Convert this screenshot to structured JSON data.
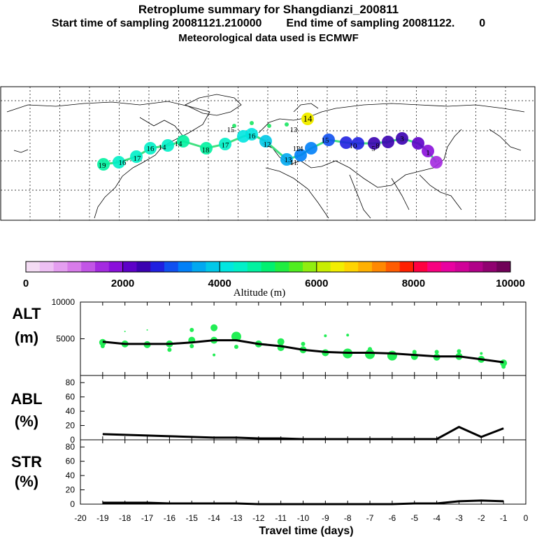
{
  "header": {
    "title": "Retroplume summary for Shangdianzi_200811",
    "start_label": "Start time of sampling 20081121.210000",
    "end_label": "End time of sampling 20081122.",
    "end_suffix": "0",
    "met_label": "Meteorological data used is ECMWF"
  },
  "colors": {
    "line": "#000000",
    "points": "#22ee55",
    "grid": "#000000"
  },
  "chart_data": [
    {
      "name": "colorbar",
      "type": "colorbar",
      "title": "Altitude (m)",
      "range": [
        0,
        10000
      ],
      "tick_labels": [
        "0",
        "2000",
        "4000",
        "6000",
        "8000",
        "10000"
      ],
      "colors": [
        "#f4dcf4",
        "#eec0f4",
        "#e49ef0",
        "#d87cea",
        "#c255e6",
        "#a42ae0",
        "#8a10da",
        "#5d00c8",
        "#3a00b0",
        "#2020e0",
        "#1050f0",
        "#0080f8",
        "#00a8f0",
        "#00c8e8",
        "#00e6e0",
        "#00f0c8",
        "#00f2a0",
        "#00f070",
        "#20ee40",
        "#50ee20",
        "#90ee10",
        "#c8ee00",
        "#f2ee00",
        "#ffd400",
        "#ffb000",
        "#ff8800",
        "#ff5c00",
        "#ff2000",
        "#ff0040",
        "#f80080",
        "#e800a0",
        "#d00098",
        "#b00088",
        "#900070",
        "#700058"
      ]
    },
    {
      "name": "ALT",
      "type": "line+scatter",
      "ylabel_line1": "ALT",
      "ylabel_line2": "(m)",
      "xlabel": "Travel time (days)",
      "ylim": [
        0,
        10000
      ],
      "ytick_labels": [
        "5000",
        "10000"
      ],
      "x": [
        -19,
        -18,
        -17,
        -16,
        -15,
        -14,
        -13,
        -12,
        -11,
        -10,
        -9,
        -8,
        -7,
        -6,
        -5,
        -4,
        -3,
        -2,
        -1
      ],
      "values": [
        4600,
        4300,
        4300,
        4300,
        4500,
        4800,
        4800,
        4300,
        4000,
        3500,
        3200,
        3100,
        3100,
        3000,
        2800,
        2600,
        2600,
        2200,
        1800
      ],
      "scatter": [
        {
          "x": -19,
          "y": 4500,
          "r": 5
        },
        {
          "x": -19,
          "y": 4000,
          "r": 3
        },
        {
          "x": -18,
          "y": 4300,
          "r": 5
        },
        {
          "x": -18,
          "y": 6000,
          "r": 1
        },
        {
          "x": -17,
          "y": 4200,
          "r": 5
        },
        {
          "x": -17,
          "y": 6200,
          "r": 1
        },
        {
          "x": -16,
          "y": 4300,
          "r": 5
        },
        {
          "x": -16,
          "y": 3500,
          "r": 3
        },
        {
          "x": -15,
          "y": 4800,
          "r": 5
        },
        {
          "x": -15,
          "y": 6200,
          "r": 3
        },
        {
          "x": -15,
          "y": 4000,
          "r": 3
        },
        {
          "x": -14,
          "y": 6500,
          "r": 5
        },
        {
          "x": -14,
          "y": 4800,
          "r": 5
        },
        {
          "x": -14,
          "y": 2800,
          "r": 2
        },
        {
          "x": -13,
          "y": 5300,
          "r": 7
        },
        {
          "x": -13,
          "y": 3900,
          "r": 3
        },
        {
          "x": -12,
          "y": 4300,
          "r": 5
        },
        {
          "x": -11,
          "y": 4600,
          "r": 5
        },
        {
          "x": -11,
          "y": 3800,
          "r": 5
        },
        {
          "x": -10,
          "y": 3500,
          "r": 5
        },
        {
          "x": -10,
          "y": 4300,
          "r": 3
        },
        {
          "x": -9,
          "y": 3100,
          "r": 5
        },
        {
          "x": -9,
          "y": 5400,
          "r": 2
        },
        {
          "x": -8,
          "y": 3000,
          "r": 7
        },
        {
          "x": -8,
          "y": 5500,
          "r": 2
        },
        {
          "x": -7,
          "y": 2900,
          "r": 7
        },
        {
          "x": -7,
          "y": 3600,
          "r": 3
        },
        {
          "x": -6,
          "y": 2700,
          "r": 7
        },
        {
          "x": -5,
          "y": 2600,
          "r": 5
        },
        {
          "x": -5,
          "y": 3200,
          "r": 3
        },
        {
          "x": -4,
          "y": 2500,
          "r": 5
        },
        {
          "x": -4,
          "y": 3200,
          "r": 3
        },
        {
          "x": -3,
          "y": 2600,
          "r": 5
        },
        {
          "x": -3,
          "y": 3300,
          "r": 3
        },
        {
          "x": -2,
          "y": 2200,
          "r": 5
        },
        {
          "x": -2,
          "y": 3000,
          "r": 2
        },
        {
          "x": -1,
          "y": 1700,
          "r": 5
        },
        {
          "x": -1,
          "y": 1200,
          "r": 3
        }
      ]
    },
    {
      "name": "ABL",
      "type": "line",
      "ylabel_line1": "ABL",
      "ylabel_line2": "(%)",
      "ylim": [
        0,
        90
      ],
      "ytick_labels": [
        "0",
        "20",
        "40",
        "60",
        "80"
      ],
      "x": [
        -19,
        -18,
        -17,
        -16,
        -15,
        -14,
        -13,
        -12,
        -11,
        -10,
        -9,
        -8,
        -7,
        -6,
        -5,
        -4,
        -3,
        -2,
        -1
      ],
      "values": [
        8,
        7,
        6,
        5,
        4,
        3,
        3,
        2,
        2,
        1,
        1,
        1,
        1,
        1,
        1,
        1,
        18,
        4,
        16
      ]
    },
    {
      "name": "STR",
      "type": "line",
      "ylabel_line1": "STR",
      "ylabel_line2": "(%)",
      "ylim": [
        0,
        90
      ],
      "ytick_labels": [
        "0",
        "20",
        "40",
        "60",
        "80"
      ],
      "xtick_labels": [
        "-20",
        "-19",
        "-18",
        "-17",
        "-16",
        "-15",
        "-14",
        "-13",
        "-12",
        "-11",
        "-10",
        "-9",
        "-8",
        "-7",
        "-6",
        "-5",
        "-4",
        "-3",
        "-2",
        "-1",
        "0"
      ],
      "x": [
        -19,
        -18,
        -17,
        -16,
        -15,
        -14,
        -13,
        -12,
        -11,
        -10,
        -9,
        -8,
        -7,
        -6,
        -5,
        -4,
        -3,
        -2,
        -1
      ],
      "values": [
        2,
        2,
        2,
        1,
        1,
        1,
        1,
        0,
        0,
        0,
        0,
        0,
        0,
        0,
        1,
        1,
        4,
        5,
        4
      ]
    },
    {
      "name": "map",
      "type": "trajectory-map",
      "labels": [
        "19",
        "16",
        "17",
        "16",
        "14",
        "14",
        "18",
        "17",
        "15",
        "16",
        "12",
        "14",
        "15",
        "10",
        "11",
        "13",
        "8",
        "5",
        "3",
        "1",
        "14",
        "12",
        "13"
      ],
      "label_values": [
        19,
        16,
        17,
        16,
        14,
        14,
        18,
        17,
        15,
        16,
        12,
        14,
        15,
        10,
        11,
        13,
        8,
        5,
        3,
        1,
        14,
        12,
        13
      ]
    }
  ]
}
